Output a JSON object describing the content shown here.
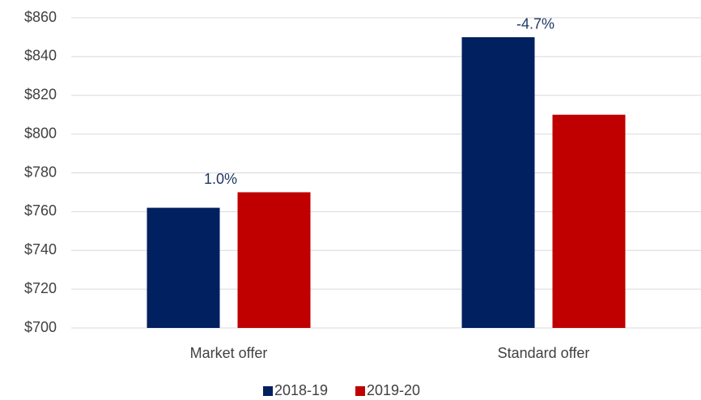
{
  "chart_data": {
    "type": "bar",
    "categories": [
      "Market offer",
      "Standard offer"
    ],
    "series": [
      {
        "name": "2018-19",
        "color": "#002060",
        "values": [
          762,
          850
        ]
      },
      {
        "name": "2019-20",
        "color": "#c00000",
        "values": [
          770,
          810
        ]
      }
    ],
    "annotations": [
      "1.0%",
      "-4.7%"
    ],
    "annotation_color": "#1f3864",
    "ylim": [
      700,
      860
    ],
    "yticks": [
      {
        "value": 700,
        "label": "$700"
      },
      {
        "value": 720,
        "label": "$720"
      },
      {
        "value": 740,
        "label": "$740"
      },
      {
        "value": 760,
        "label": "$760"
      },
      {
        "value": 780,
        "label": "$780"
      },
      {
        "value": 800,
        "label": "$800"
      },
      {
        "value": 820,
        "label": "$820"
      },
      {
        "value": 840,
        "label": "$840"
      },
      {
        "value": 860,
        "label": "$860"
      }
    ],
    "grid": true,
    "legend": "bottom"
  }
}
